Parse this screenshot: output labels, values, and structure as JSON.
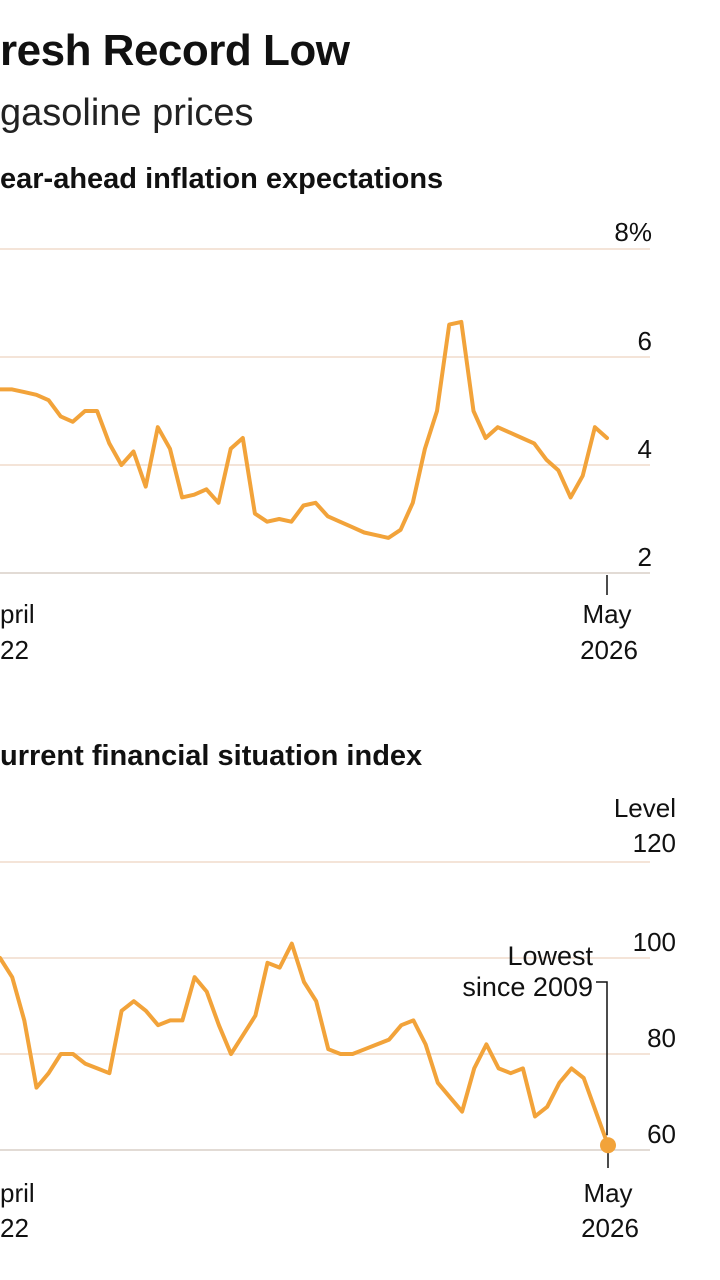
{
  "header": {
    "headline": "resh Record Low",
    "subhead": "gasoline prices"
  },
  "colors": {
    "line": "#f2a33a",
    "grid": "#f0dccc",
    "text": "#111111"
  },
  "chart_data": [
    {
      "type": "line",
      "title": "ear-ahead inflation expectations",
      "y_unit_top": "8%",
      "ylim": [
        2,
        8
      ],
      "yticks": [
        {
          "v": 8,
          "label": "8%"
        },
        {
          "v": 6,
          "label": "6"
        },
        {
          "v": 4,
          "label": "4"
        },
        {
          "v": 2,
          "label": "2"
        }
      ],
      "x_start_label": [
        "pril",
        "22"
      ],
      "x_end_label": [
        "May",
        "2026"
      ],
      "series": [
        {
          "values": [
            5.4,
            5.4,
            5.35,
            5.3,
            5.2,
            4.9,
            4.8,
            5.0,
            5.0,
            4.4,
            4.0,
            4.25,
            3.6,
            4.7,
            4.3,
            3.4,
            3.45,
            3.55,
            3.3,
            4.3,
            4.5,
            3.1,
            2.95,
            3.0,
            2.95,
            3.25,
            3.3,
            3.05,
            2.95,
            2.85,
            2.75,
            2.7,
            2.65,
            2.8,
            3.3,
            4.3,
            5.0,
            6.6,
            6.65,
            5.0,
            4.5,
            4.7,
            4.6,
            4.5,
            4.4,
            4.1,
            3.9,
            3.4,
            3.8,
            4.7,
            4.5
          ]
        }
      ]
    },
    {
      "type": "line",
      "title": "urrent financial situation index",
      "y_unit_top": "Level",
      "ylim": [
        60,
        120
      ],
      "yticks": [
        {
          "v": 120,
          "label": "120"
        },
        {
          "v": 100,
          "label": "100"
        },
        {
          "v": 80,
          "label": "80"
        },
        {
          "v": 60,
          "label": "60"
        }
      ],
      "x_start_label": [
        "pril",
        "22"
      ],
      "x_end_label": [
        "May",
        "2026"
      ],
      "annotation": [
        "Lowest",
        "since 2009"
      ],
      "series": [
        {
          "values": [
            100,
            96,
            87,
            73,
            76,
            80,
            80,
            78,
            77,
            76,
            89,
            91,
            89,
            86,
            87,
            87,
            96,
            93,
            86,
            80,
            84,
            88,
            99,
            98,
            103,
            95,
            91,
            81,
            80,
            80,
            81,
            82,
            83,
            86,
            87,
            82,
            74,
            71,
            68,
            77,
            82,
            77,
            76,
            77,
            67,
            69,
            74,
            77,
            75,
            68,
            61
          ]
        }
      ]
    }
  ]
}
